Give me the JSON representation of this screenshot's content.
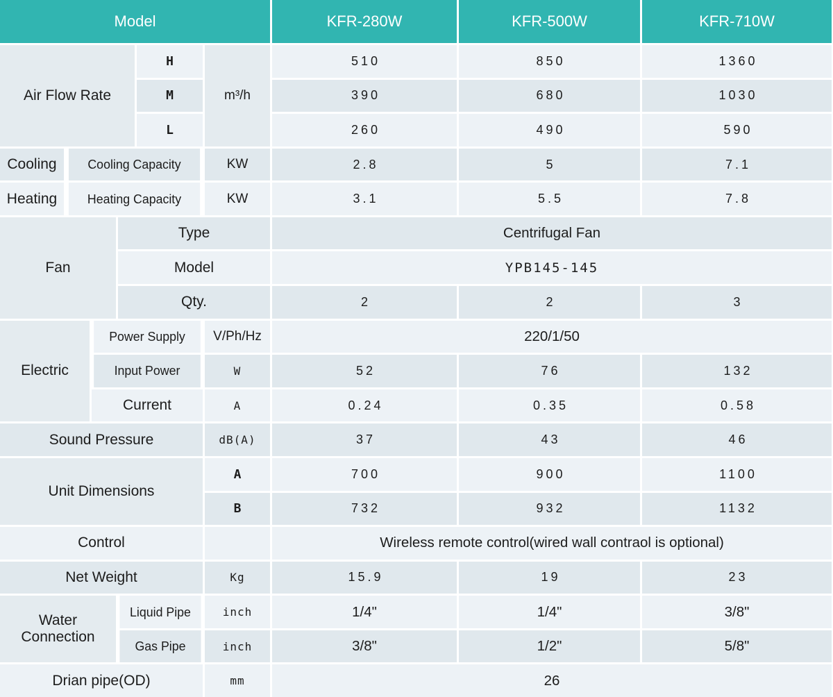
{
  "header": {
    "model_label": "Model",
    "models": [
      "KFR-280W",
      "KFR-500W",
      "KFR-710W"
    ]
  },
  "airflow": {
    "label": "Air Flow Rate",
    "unit": "m³/h",
    "rows": [
      {
        "speed": "H",
        "values": [
          "510",
          "850",
          "1360"
        ]
      },
      {
        "speed": "M",
        "values": [
          "390",
          "680",
          "1030"
        ]
      },
      {
        "speed": "L",
        "values": [
          "260",
          "490",
          "590"
        ]
      }
    ]
  },
  "cooling": {
    "label": "Cooling",
    "sub_label": "Cooling Capacity",
    "unit": "KW",
    "values": [
      "2.8",
      "5",
      "7.1"
    ]
  },
  "heating": {
    "label": "Heating",
    "sub_label": "Heating Capacity",
    "unit": "KW",
    "values": [
      "3.1",
      "5.5",
      "7.8"
    ]
  },
  "fan": {
    "label": "Fan",
    "type_label": "Type",
    "type_value": "Centrifugal Fan",
    "model_label": "Model",
    "model_value": "YPB145-145",
    "qty_label": "Qty.",
    "qty_values": [
      "2",
      "2",
      "3"
    ]
  },
  "electric": {
    "label": "Electric",
    "power_supply": {
      "label": "Power Supply",
      "unit": "V/Ph/Hz",
      "value": "220/1/50"
    },
    "input_power": {
      "label": "Input Power",
      "unit": "W",
      "values": [
        "52",
        "76",
        "132"
      ]
    },
    "current": {
      "label": "Current",
      "unit": "A",
      "values": [
        "0.24",
        "0.35",
        "0.58"
      ]
    }
  },
  "sound_pressure": {
    "label": "Sound Pressure",
    "unit": "dB(A)",
    "values": [
      "37",
      "43",
      "46"
    ]
  },
  "dimensions": {
    "label": "Unit Dimensions",
    "rows": [
      {
        "dim": "A",
        "values": [
          "700",
          "900",
          "1100"
        ]
      },
      {
        "dim": "B",
        "values": [
          "732",
          "932",
          "1132"
        ]
      }
    ]
  },
  "control": {
    "label": "Control",
    "unit": "",
    "value": "Wireless remote control(wired wall contraol is optional)"
  },
  "net_weight": {
    "label": "Net Weight",
    "unit": "Kg",
    "values": [
      "15.9",
      "19",
      "23"
    ]
  },
  "water": {
    "label": "Water Connection",
    "liquid": {
      "label": "Liquid Pipe",
      "unit": "inch",
      "values": [
        "1/4\"",
        "1/4\"",
        "3/8\""
      ]
    },
    "gas": {
      "label": "Gas Pipe",
      "unit": "inch",
      "values": [
        "3/8\"",
        "1/2\"",
        "5/8\""
      ]
    }
  },
  "drain": {
    "label": "Drian pipe(OD)",
    "unit": "mm",
    "value": "26"
  },
  "colors": {
    "header_bg": "#31b5b1",
    "header_text": "#ffffff",
    "row_light": "#edf2f6",
    "row_dark": "#e0e8ed",
    "label_merged": "#e4ebef",
    "body_text": "#1c1c1c"
  }
}
